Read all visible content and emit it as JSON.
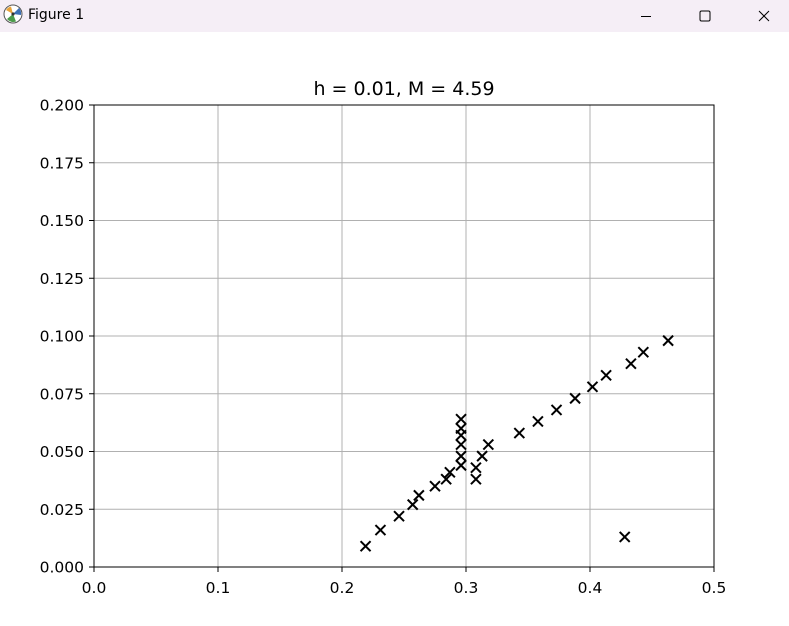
{
  "window": {
    "title": "Figure 1",
    "icons": [
      "app-icon",
      "minimize-icon",
      "maximize-icon",
      "close-icon"
    ]
  },
  "chart_data": {
    "type": "scatter",
    "title": "h = 0.01, M = 4.59",
    "xlabel": "",
    "ylabel": "",
    "xlim": [
      0.0,
      0.5
    ],
    "ylim": [
      0.0,
      0.2
    ],
    "xticks": [
      "0.0",
      "0.1",
      "0.2",
      "0.3",
      "0.4",
      "0.5"
    ],
    "yticks": [
      "0.000",
      "0.025",
      "0.050",
      "0.075",
      "0.100",
      "0.125",
      "0.150",
      "0.175",
      "0.200"
    ],
    "grid": true,
    "marker": "x",
    "marker_color": "#000000",
    "points": [
      [
        0.219,
        0.009
      ],
      [
        0.231,
        0.016
      ],
      [
        0.246,
        0.022
      ],
      [
        0.257,
        0.027
      ],
      [
        0.262,
        0.031
      ],
      [
        0.275,
        0.035
      ],
      [
        0.284,
        0.038
      ],
      [
        0.287,
        0.041
      ],
      [
        0.296,
        0.044
      ],
      [
        0.296,
        0.048
      ],
      [
        0.296,
        0.053
      ],
      [
        0.296,
        0.057
      ],
      [
        0.296,
        0.06
      ],
      [
        0.296,
        0.064
      ],
      [
        0.308,
        0.038
      ],
      [
        0.308,
        0.043
      ],
      [
        0.313,
        0.048
      ],
      [
        0.318,
        0.053
      ],
      [
        0.343,
        0.058
      ],
      [
        0.358,
        0.063
      ],
      [
        0.373,
        0.068
      ],
      [
        0.388,
        0.073
      ],
      [
        0.402,
        0.078
      ],
      [
        0.413,
        0.083
      ],
      [
        0.433,
        0.088
      ],
      [
        0.443,
        0.093
      ],
      [
        0.463,
        0.098
      ],
      [
        0.428,
        0.013
      ]
    ]
  }
}
